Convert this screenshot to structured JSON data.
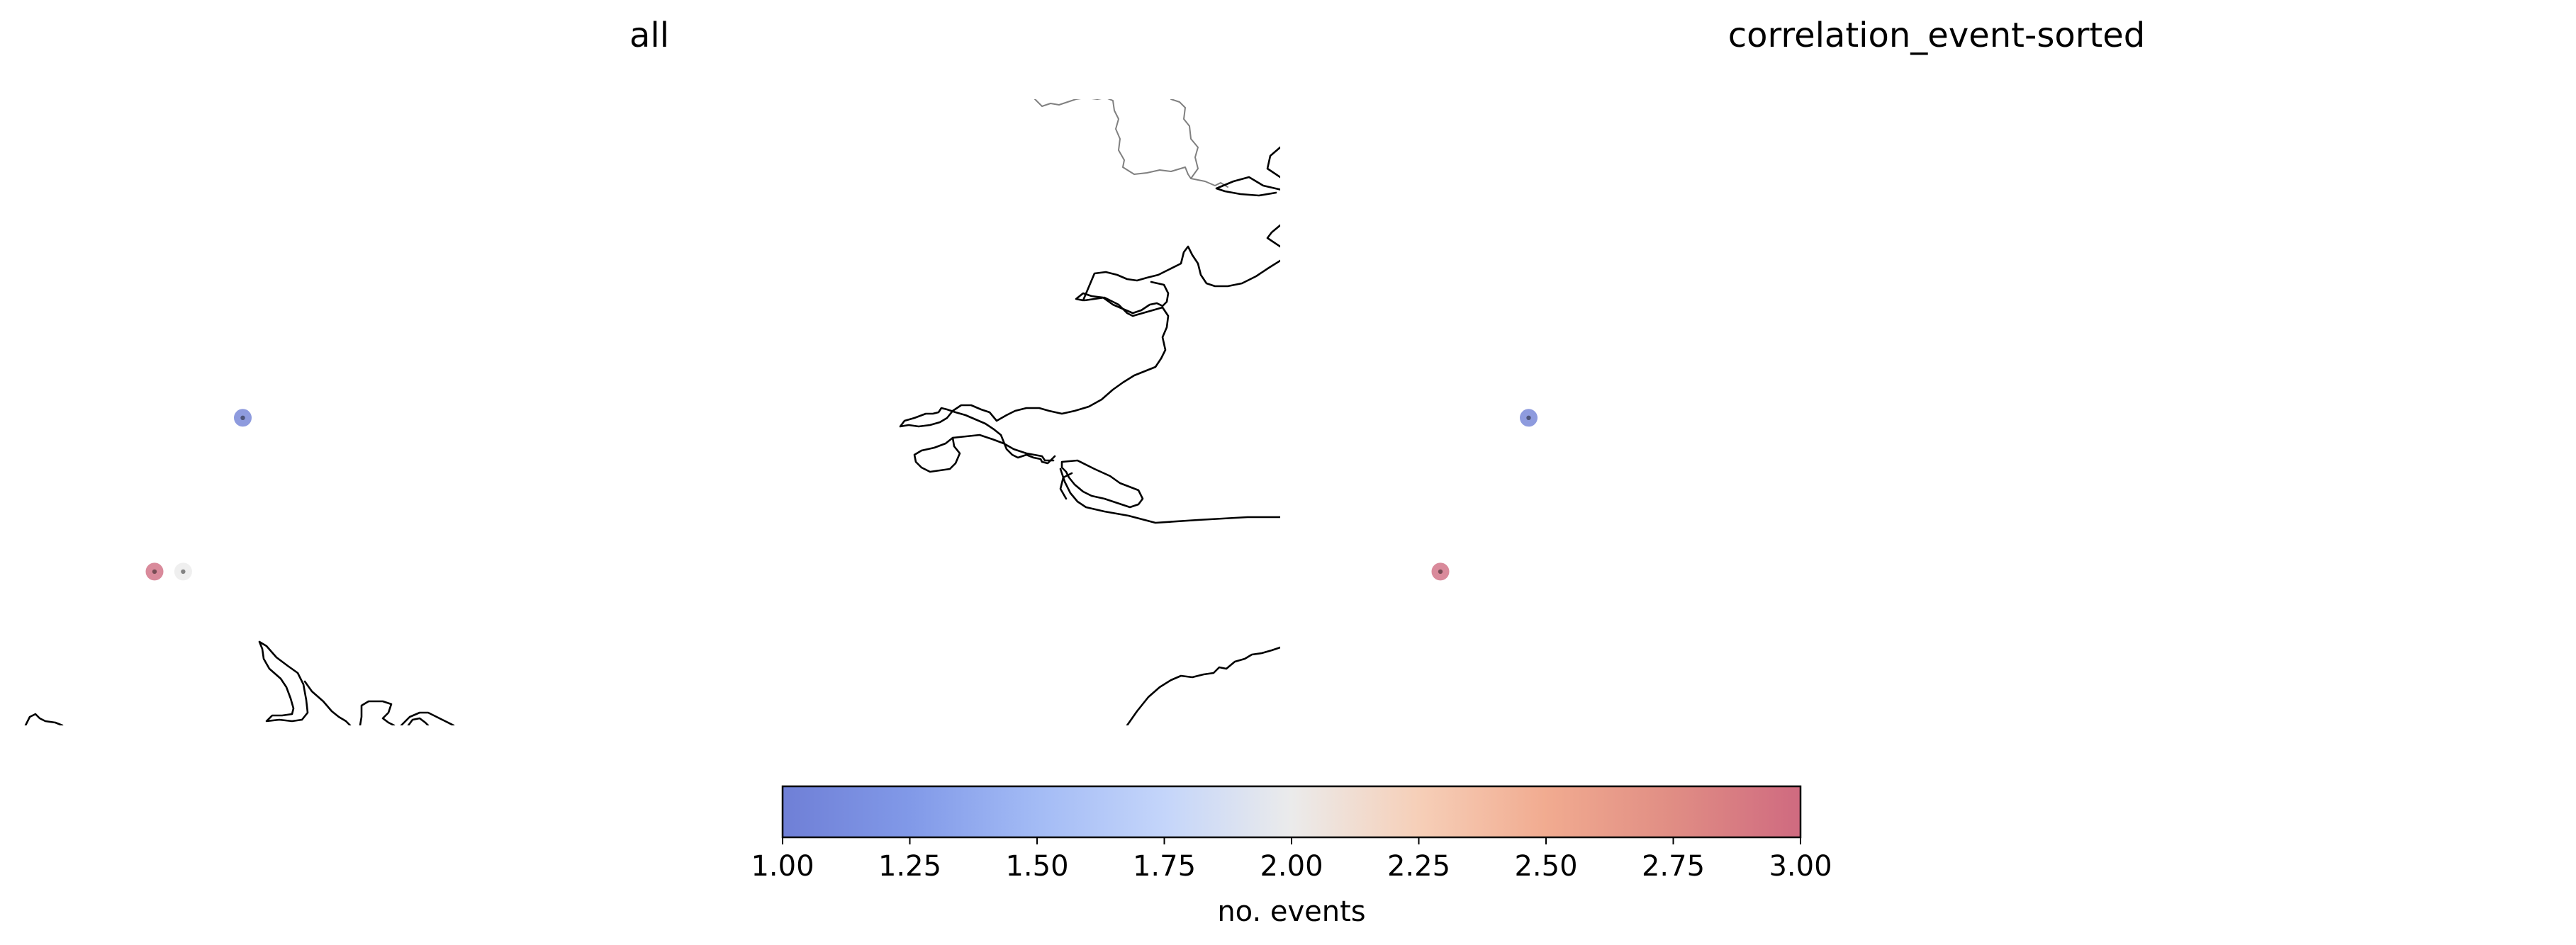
{
  "panels": [
    {
      "title": "all",
      "events": [
        {
          "lon": -9.2,
          "lat": 53.6,
          "count": 1
        },
        {
          "lon": -9.6,
          "lat": 52.9,
          "count": 3
        },
        {
          "lon": -9.47,
          "lat": 52.9,
          "count": 2
        }
      ]
    },
    {
      "title": "correlation_event-sorted",
      "events": [
        {
          "lon": -9.2,
          "lat": 53.6,
          "count": 1
        },
        {
          "lon": -9.6,
          "lat": 52.9,
          "count": 3
        }
      ]
    }
  ],
  "colorbar": {
    "label": "no. events",
    "min": 1,
    "max": 3,
    "colormap": "coolwarm",
    "ticks": [
      "1.00",
      "1.25",
      "1.50",
      "1.75",
      "2.00",
      "2.25",
      "2.50",
      "2.75",
      "3.00"
    ],
    "colors": {
      "low": "#3b4cc0",
      "mid": "#dddddd",
      "high": "#b40426"
    }
  },
  "map": {
    "coastline_color": "#000000",
    "border_color": "#808080"
  }
}
